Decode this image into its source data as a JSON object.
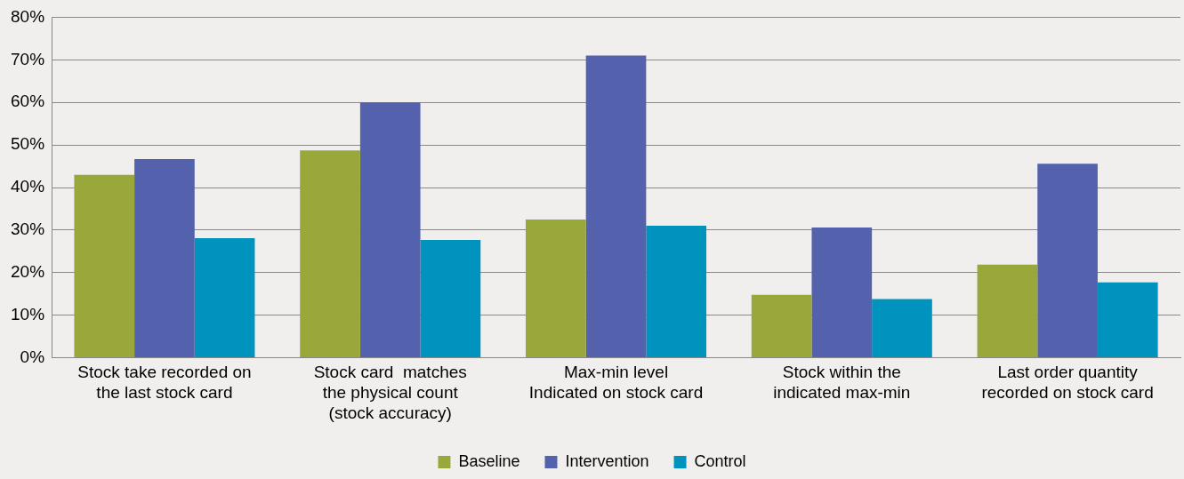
{
  "chart_data": {
    "type": "bar",
    "categories": [
      "Stock take recorded on\nthe last stock card",
      "Stock card  matches\nthe physical count\n(stock accuracy)",
      "Max-min level\nIndicated on stock card",
      "Stock within the\nindicated max-min",
      "Last order quantity\nrecorded on stock card"
    ],
    "series": [
      {
        "name": "Baseline",
        "color": "#9aa73a",
        "values": [
          43,
          48.7,
          32.5,
          14.8,
          21.9
        ]
      },
      {
        "name": "Intervention",
        "color": "#5462ad",
        "values": [
          46.7,
          60,
          71,
          30.6,
          45.6
        ]
      },
      {
        "name": "Control",
        "color": "#0093be",
        "values": [
          28.1,
          27.7,
          31,
          13.8,
          17.7
        ]
      }
    ],
    "ylim": [
      0,
      80
    ],
    "yticks": [
      {
        "value": 0,
        "label": "0%"
      },
      {
        "value": 10,
        "label": "10%"
      },
      {
        "value": 20,
        "label": "20%"
      },
      {
        "value": 30,
        "label": "30%"
      },
      {
        "value": 40,
        "label": "40%"
      },
      {
        "value": 50,
        "label": "50%"
      },
      {
        "value": 60,
        "label": "60%"
      },
      {
        "value": 70,
        "label": "70%"
      },
      {
        "value": 80,
        "label": "80%"
      }
    ],
    "grid": "y",
    "legend": "bottom"
  }
}
